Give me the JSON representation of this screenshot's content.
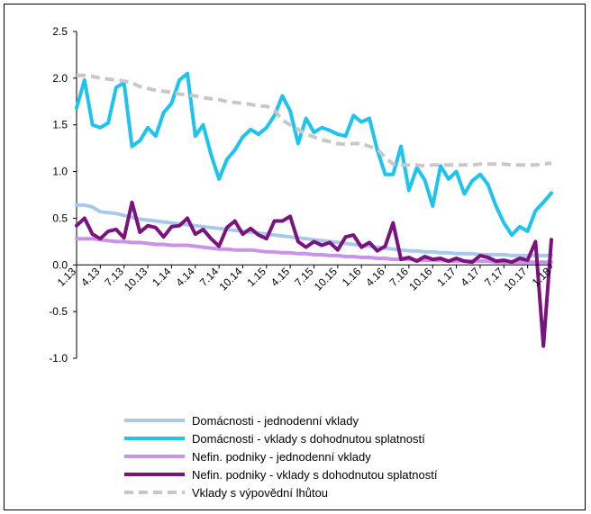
{
  "chart_data": {
    "type": "line",
    "title": "",
    "xlabel": "",
    "ylabel": "",
    "ylim": [
      -1.0,
      2.5
    ],
    "yticks": [
      "2.5",
      "2.0",
      "1.5",
      "1.0",
      "0.5",
      "0.0",
      "-0.5",
      "-1.0"
    ],
    "ytick_values": [
      2.5,
      2.0,
      1.5,
      1.0,
      0.5,
      0.0,
      -0.5,
      -1.0
    ],
    "grid": false,
    "legend_position": "bottom",
    "x": [
      "1.13",
      "2.13",
      "3.13",
      "4.13",
      "5.13",
      "6.13",
      "7.13",
      "8.13",
      "9.13",
      "10.13",
      "11.13",
      "12.13",
      "1.14",
      "2.14",
      "3.14",
      "4.14",
      "5.14",
      "6.14",
      "7.14",
      "8.14",
      "9.14",
      "10.14",
      "11.14",
      "12.14",
      "1.15",
      "2.15",
      "3.15",
      "4.15",
      "5.15",
      "6.15",
      "7.15",
      "8.15",
      "9.15",
      "10.15",
      "11.15",
      "12.15",
      "1.16",
      "2.16",
      "3.16",
      "4.16",
      "5.16",
      "6.16",
      "7.16",
      "8.16",
      "9.16",
      "10.16",
      "11.16",
      "12.16",
      "1.17",
      "2.17",
      "3.17",
      "4.17",
      "5.17",
      "6.17",
      "7.17",
      "8.17",
      "9.17",
      "10.17",
      "11.17",
      "12.17",
      "1.18"
    ],
    "xtick_labels": [
      "1.13",
      "4.13",
      "7.13",
      "10.13",
      "1.14",
      "4.14",
      "7.14",
      "10.14",
      "1.15",
      "4.15",
      "7.15",
      "10.15",
      "1.16",
      "4.16",
      "7.16",
      "10.16",
      "1.17",
      "4.17",
      "7.17",
      "10.17",
      "1.18"
    ],
    "series": [
      {
        "name": "Domácnosti - jednodenní vklady",
        "color": "#a9c9ea",
        "dash": false,
        "values": [
          0.64,
          0.64,
          0.62,
          0.57,
          0.56,
          0.55,
          0.53,
          0.51,
          0.49,
          0.48,
          0.47,
          0.46,
          0.45,
          0.44,
          0.43,
          0.42,
          0.41,
          0.4,
          0.39,
          0.38,
          0.37,
          0.36,
          0.35,
          0.34,
          0.33,
          0.32,
          0.31,
          0.3,
          0.29,
          0.28,
          0.27,
          0.26,
          0.25,
          0.24,
          0.23,
          0.22,
          0.21,
          0.2,
          0.19,
          0.18,
          0.17,
          0.16,
          0.15,
          0.15,
          0.14,
          0.14,
          0.13,
          0.13,
          0.12,
          0.12,
          0.12,
          0.11,
          0.11,
          0.11,
          0.11,
          0.1,
          0.1,
          0.1,
          0.1,
          0.1,
          0.1
        ]
      },
      {
        "name": "Domácnosti - vklady s dohodnutou splatností",
        "color": "#1cc4ef",
        "dash": false,
        "values": [
          1.68,
          1.98,
          1.5,
          1.47,
          1.52,
          1.9,
          1.95,
          1.27,
          1.33,
          1.47,
          1.38,
          1.63,
          1.73,
          1.98,
          2.05,
          1.38,
          1.5,
          1.18,
          0.92,
          1.13,
          1.23,
          1.37,
          1.45,
          1.4,
          1.47,
          1.6,
          1.81,
          1.65,
          1.3,
          1.57,
          1.42,
          1.47,
          1.44,
          1.4,
          1.38,
          1.6,
          1.53,
          1.57,
          1.23,
          0.97,
          0.97,
          1.27,
          0.8,
          1.04,
          0.91,
          0.63,
          1.06,
          0.92,
          1.0,
          0.76,
          0.9,
          0.97,
          0.86,
          0.63,
          0.45,
          0.32,
          0.41,
          0.36,
          0.58,
          0.67,
          0.77
        ]
      },
      {
        "name": "Nefin. podniky - jednodenní vklady",
        "color": "#c993e8",
        "dash": false,
        "values": [
          0.28,
          0.28,
          0.28,
          0.27,
          0.26,
          0.25,
          0.25,
          0.24,
          0.24,
          0.23,
          0.22,
          0.22,
          0.21,
          0.21,
          0.21,
          0.2,
          0.19,
          0.18,
          0.17,
          0.17,
          0.16,
          0.16,
          0.16,
          0.15,
          0.14,
          0.14,
          0.13,
          0.13,
          0.12,
          0.12,
          0.11,
          0.11,
          0.1,
          0.1,
          0.09,
          0.09,
          0.08,
          0.08,
          0.07,
          0.07,
          0.06,
          0.06,
          0.06,
          0.05,
          0.05,
          0.05,
          0.05,
          0.04,
          0.04,
          0.04,
          0.04,
          0.04,
          0.04,
          0.03,
          0.03,
          0.03,
          0.03,
          0.03,
          0.03,
          0.03,
          0.03
        ]
      },
      {
        "name": "Nefin. podniky - vklady s dohodnutou splatností",
        "color": "#7b137f",
        "dash": false,
        "values": [
          0.42,
          0.5,
          0.33,
          0.28,
          0.36,
          0.38,
          0.29,
          0.67,
          0.35,
          0.42,
          0.4,
          0.3,
          0.41,
          0.42,
          0.5,
          0.33,
          0.38,
          0.28,
          0.2,
          0.4,
          0.47,
          0.33,
          0.39,
          0.32,
          0.28,
          0.47,
          0.47,
          0.52,
          0.25,
          0.19,
          0.25,
          0.21,
          0.24,
          0.16,
          0.3,
          0.32,
          0.19,
          0.24,
          0.15,
          0.2,
          0.45,
          0.06,
          0.08,
          0.04,
          0.09,
          0.06,
          0.07,
          0.04,
          0.07,
          0.04,
          0.03,
          0.1,
          0.08,
          0.04,
          0.05,
          0.03,
          0.07,
          0.05,
          0.25,
          -0.87,
          0.27
        ]
      },
      {
        "name": "Vklady s výpovědní lhůtou",
        "color": "#c8c8c8",
        "dash": true,
        "values": [
          2.03,
          2.03,
          2.02,
          2.0,
          1.99,
          1.98,
          1.97,
          1.95,
          1.91,
          1.89,
          1.87,
          1.86,
          1.85,
          1.83,
          1.82,
          1.81,
          1.79,
          1.78,
          1.77,
          1.75,
          1.74,
          1.73,
          1.72,
          1.7,
          1.7,
          1.66,
          1.55,
          1.5,
          1.45,
          1.4,
          1.37,
          1.34,
          1.32,
          1.3,
          1.29,
          1.3,
          1.3,
          1.27,
          1.24,
          1.15,
          1.08,
          1.07,
          1.07,
          1.07,
          1.06,
          1.07,
          1.07,
          1.07,
          1.07,
          1.07,
          1.07,
          1.08,
          1.08,
          1.08,
          1.08,
          1.07,
          1.07,
          1.07,
          1.07,
          1.08,
          1.09
        ]
      }
    ]
  }
}
